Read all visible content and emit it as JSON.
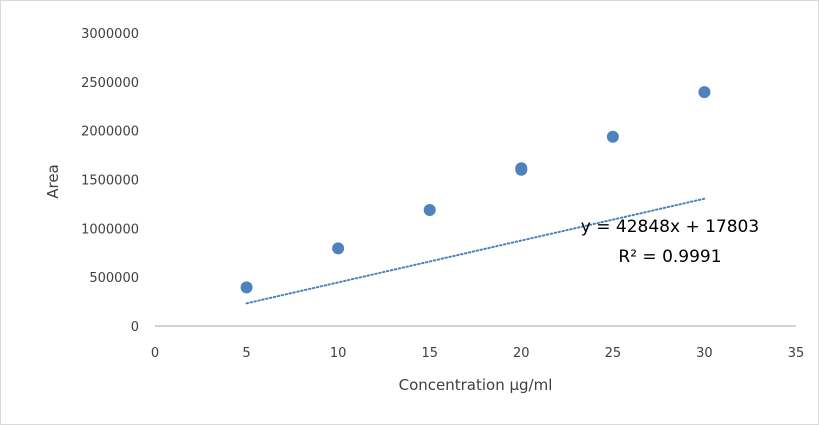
{
  "chart_data": {
    "type": "scatter",
    "x": [
      5,
      10,
      15,
      20,
      20,
      25,
      30
    ],
    "y": [
      395000,
      795000,
      1188000,
      1600000,
      1615000,
      1938000,
      2395000
    ],
    "xlabel": "Concentration µg/ml",
    "ylabel": "Area",
    "xlim": [
      0,
      35
    ],
    "ylim": [
      0,
      3000000
    ],
    "xticks": [
      0,
      5,
      10,
      15,
      20,
      25,
      30,
      35
    ],
    "yticks": [
      0,
      500000,
      1000000,
      1500000,
      2000000,
      2500000,
      3000000
    ],
    "xtick_labels": [
      "0",
      "5",
      "10",
      "15",
      "20",
      "25",
      "30",
      "35"
    ],
    "ytick_labels": [
      "0",
      "500000",
      "1000000",
      "1500000",
      "2000000",
      "2500000",
      "3000000"
    ],
    "grid": false,
    "trendline": {
      "type": "linear",
      "style": "dotted",
      "slope": 42848,
      "intercept": 17803,
      "x_range": [
        5,
        30
      ],
      "equation": "y = 42848x + 17803",
      "r_squared": "R² = 0.9991"
    },
    "colors": {
      "marker": "#4f81bd",
      "trendline": "#4f81bd",
      "axis": "#a6a6a6",
      "frame": "#d9d9d9"
    }
  }
}
